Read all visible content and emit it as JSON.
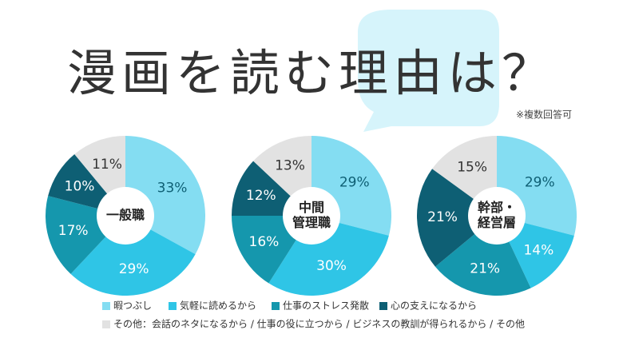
{
  "title": "漫画を読む理由は？",
  "note": "※複数回答可",
  "legend": [
    {
      "name": "暇つぶし",
      "color": "#84ddf2"
    },
    {
      "name": "気軽に読めるから",
      "color": "#2fc5e6"
    },
    {
      "name": "仕事のストレス発散",
      "color": "#1597ad"
    },
    {
      "name": "心の支えになるから",
      "color": "#0e5f74"
    },
    {
      "name": "その他：会話のネタになるから / 仕事の役に立つから / ビジネスの教訓が得られるから / その他",
      "color": "#e2e2e2"
    }
  ],
  "chart_data": [
    {
      "type": "pie",
      "center_label": [
        "一般職"
      ],
      "values": [
        33,
        29,
        17,
        10,
        11
      ],
      "value_labels": [
        "33%",
        "29%",
        "17%",
        "10%",
        "11%"
      ]
    },
    {
      "type": "pie",
      "center_label": [
        "中間",
        "管理職"
      ],
      "values": [
        29,
        30,
        16,
        12,
        13
      ],
      "value_labels": [
        "29%",
        "30%",
        "16%",
        "12%",
        "13%"
      ]
    },
    {
      "type": "pie",
      "center_label": [
        "幹部・",
        "経営層"
      ],
      "values": [
        29,
        14,
        21,
        21,
        15
      ],
      "value_labels": [
        "29%",
        "14%",
        "21%",
        "21%",
        "15%"
      ]
    }
  ]
}
